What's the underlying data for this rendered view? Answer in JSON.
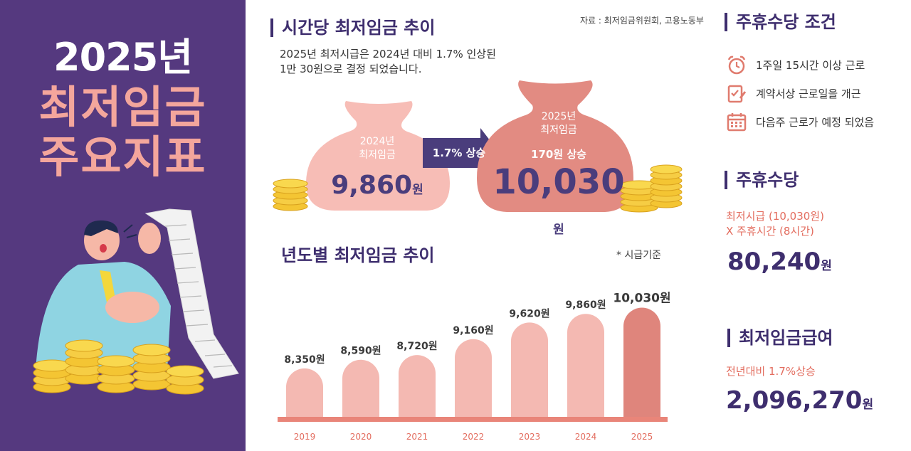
{
  "left_panel": {
    "year_title": "2025년",
    "line1": "최저임금",
    "line2": "주요지표"
  },
  "hourly_section": {
    "title": "시간당 최저임금 추이",
    "source": "자료 : 최저임금위원회, 고용노동부",
    "desc_line1": "2025년 최저시급은 2024년 대비 1.7% 인상된",
    "desc_line2": "1만 30원으로 결정 되었습니다.",
    "bag_2024_label1": "2024년",
    "bag_2024_label2": "최저임금",
    "bag_2024_amount": "9,860",
    "bag_2025_label1": "2025년",
    "bag_2025_label2": "최저임금",
    "bag_2025_rise": "170원 상승",
    "bag_2025_amount": "10,030",
    "unit": "원",
    "arrow_text": "1.7% 상승"
  },
  "yearly_section": {
    "title": "년도별 최저임금 추이",
    "note": "* 시급기준"
  },
  "chart_data": {
    "type": "bar",
    "categories": [
      "2019",
      "2020",
      "2021",
      "2022",
      "2023",
      "2024",
      "2025"
    ],
    "values": [
      8350,
      8590,
      8720,
      9160,
      9620,
      9860,
      10030
    ],
    "data_labels": [
      "8,350원",
      "8,590원",
      "8,720원",
      "9,160원",
      "9,620원",
      "9,860원",
      "10,030원"
    ],
    "colors": {
      "bar": "#f4b9b2",
      "highlight": "#df857c",
      "baseline": "#e98579",
      "label": "#3a3a3a",
      "tick": "#e36d5f"
    }
  },
  "right_col": {
    "cond_title": "주휴수당 조건",
    "cond1": "1주일 15시간 이상 근로",
    "cond2": "계약서상 근로일을 개근",
    "cond3": "다음주 근로가 예정 되었음",
    "allow_title": "주휴수당",
    "allow_line1": "최저시급 (10,030원)",
    "allow_line2": "X 주휴시간 (8시간)",
    "allow_value": "80,240",
    "wage_title": "최저임금급여",
    "wage_sub": "전년대비 1.7%상승",
    "wage_value": "2,096,270",
    "unit": "원"
  },
  "colors": {
    "purple": "#55397f",
    "navy": "#3e2e6e",
    "pink": "#f4a69c",
    "salmon": "#e36d5f"
  }
}
